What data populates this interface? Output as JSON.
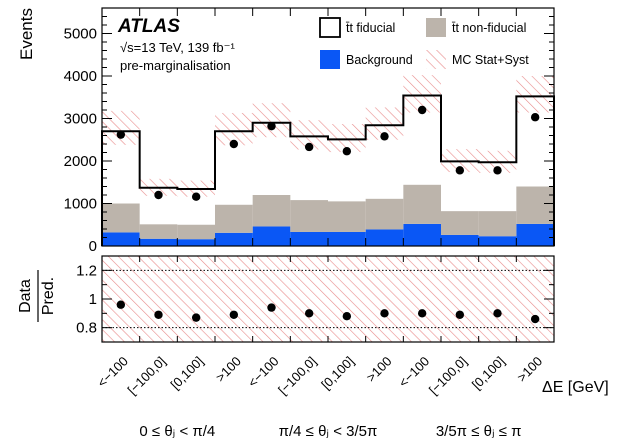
{
  "chart_data": [
    {
      "type": "bar",
      "panel": "main",
      "ylabel": "Events",
      "ylim": [
        0,
        5600
      ],
      "yticks": [
        0,
        1000,
        2000,
        3000,
        4000,
        5000
      ],
      "ytick_labels": [
        "0",
        "1000",
        "2000",
        "3000",
        "4000",
        "5000"
      ],
      "stacked": true,
      "categories": [
        "<−100",
        "[−100,0]",
        "[0,100]",
        ">100",
        "<−100",
        "[−100,0]",
        "[0,100]",
        ">100",
        "<−100",
        "[−100,0]",
        "[0,100]",
        ">100"
      ],
      "series": [
        {
          "name": "Background",
          "values": [
            320,
            170,
            160,
            310,
            460,
            330,
            330,
            390,
            520,
            260,
            230,
            520
          ]
        },
        {
          "name": "t̄t non-fiducial",
          "values": [
            680,
            340,
            340,
            660,
            740,
            750,
            720,
            720,
            920,
            560,
            590,
            880
          ]
        },
        {
          "name": "t̄t fiducial",
          "values": [
            1700,
            860,
            840,
            1730,
            1700,
            1500,
            1460,
            1730,
            2100,
            1170,
            1150,
            2120
          ]
        }
      ],
      "prediction_total": [
        2700,
        1370,
        1340,
        2700,
        2900,
        2580,
        2510,
        2840,
        3540,
        1990,
        1970,
        3520
      ],
      "uncertainty": {
        "name": "MC Stat+Syst",
        "low": [
          2380,
          1180,
          1160,
          2370,
          2560,
          2270,
          2210,
          2500,
          3140,
          1740,
          1720,
          3140
        ],
        "high": [
          3180,
          1580,
          1540,
          3130,
          3360,
          2960,
          2870,
          3260,
          4020,
          2280,
          2240,
          4000
        ]
      },
      "data_points": [
        2620,
        1200,
        1160,
        2400,
        2820,
        2330,
        2230,
        2580,
        3200,
        1780,
        1780,
        3030
      ],
      "annotations": {
        "experiment": "ATLAS",
        "energy": "√s=13 TeV, 139 fb⁻¹",
        "stage": "pre-marginalisation"
      },
      "legend": {
        "placement": "top-right",
        "entries": [
          "t̄t fiducial",
          "t̄t non-fiducial",
          "Background",
          "MC Stat+Syst"
        ]
      }
    },
    {
      "type": "scatter",
      "panel": "ratio",
      "ylabel_top": "Data",
      "ylabel_bottom": "Pred.",
      "ylim": [
        0.7,
        1.3
      ],
      "yticks": [
        0.8,
        1,
        1.2
      ],
      "ytick_labels": [
        "0.8",
        "1",
        "1.2"
      ],
      "reference_lines": [
        0.8,
        1.2
      ],
      "band": [
        0.7,
        1.3
      ],
      "values": [
        0.96,
        0.89,
        0.87,
        0.89,
        0.94,
        0.9,
        0.88,
        0.9,
        0.9,
        0.89,
        0.9,
        0.86
      ],
      "xlabel": "ΔE [GeV]",
      "group_labels": [
        "0 ≤ θⱼ < π/4",
        "π/4 ≤ θⱼ < 3/5π",
        "3/5π ≤ θⱼ ≤ π"
      ]
    }
  ],
  "colors": {
    "background": "#0a57f5",
    "non_fiducial": "#bcb4ab",
    "fiducial": "#ffffff",
    "uncertainty_hatch": "#e88a8a",
    "frame": "#000000",
    "data": "#000000"
  }
}
